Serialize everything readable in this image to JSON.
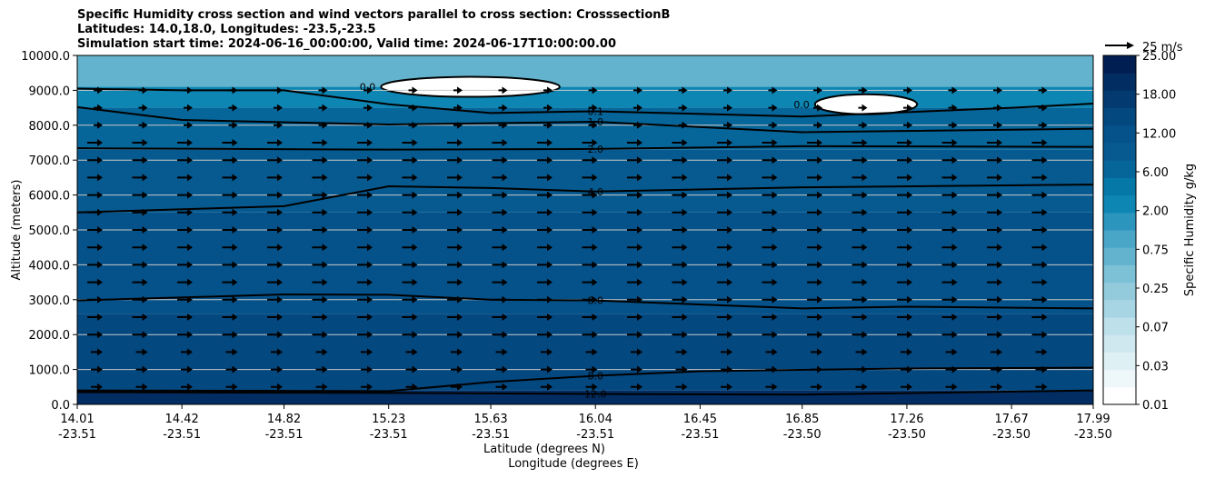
{
  "chart_data": {
    "type": "contour",
    "title_lines": [
      "Specific Humidity cross section and wind vectors parallel to cross section: CrosssectionB",
      "Latitudes: 14.0,18.0, Longitudes: -23.5,-23.5",
      "Simulation start time: 2024-06-16_00:00:00, Valid time: 2024-06-17T10:00:00.00"
    ],
    "ylabel": "Altitude (meters)",
    "xlabel_lat": "Latitude (degrees N)",
    "xlabel_lon": "Longitude (degrees E)",
    "ylim": [
      0,
      10000
    ],
    "y_ticks": [
      "0.0",
      "1000.0",
      "2000.0",
      "3000.0",
      "4000.0",
      "5000.0",
      "6000.0",
      "7000.0",
      "8000.0",
      "9000.0",
      "10000.0"
    ],
    "x_ticks": [
      {
        "lat": "14.01",
        "lon": "-23.51"
      },
      {
        "lat": "14.42",
        "lon": "-23.51"
      },
      {
        "lat": "14.82",
        "lon": "-23.51"
      },
      {
        "lat": "15.23",
        "lon": "-23.51"
      },
      {
        "lat": "15.63",
        "lon": "-23.51"
      },
      {
        "lat": "16.04",
        "lon": "-23.51"
      },
      {
        "lat": "16.45",
        "lon": "-23.51"
      },
      {
        "lat": "16.85",
        "lon": "-23.50"
      },
      {
        "lat": "17.26",
        "lon": "-23.50"
      },
      {
        "lat": "17.67",
        "lon": "-23.50"
      },
      {
        "lat": "17.99",
        "lon": "-23.50"
      }
    ],
    "colorbar": {
      "label": "Specific Humidity g/kg",
      "levels": [
        0.01,
        0.02,
        0.03,
        0.05,
        0.07,
        0.1,
        0.25,
        0.5,
        0.75,
        1.0,
        2.0,
        4.0,
        6.0,
        8.0,
        12.0,
        15.0,
        18.0,
        22.0,
        25.0
      ],
      "tick_labels": [
        "0.01",
        "0.03",
        "0.07",
        "0.25",
        "0.75",
        "2.00",
        "6.00",
        "12.00",
        "18.00",
        "25.00"
      ],
      "colors": [
        "#ffffff",
        "#eef7fa",
        "#dff0f5",
        "#cfe7ef",
        "#bde0ea",
        "#a8d5e3",
        "#93cbdc",
        "#7cc1d6",
        "#63b3ce",
        "#4aa6c7",
        "#2b95bd",
        "#0d86b3",
        "#0578a8",
        "#066599",
        "#065a90",
        "#05528a",
        "#044880",
        "#033b71",
        "#022d62",
        "#011e52"
      ]
    },
    "filled_bands": [
      {
        "y_from": 0,
        "y_to": 400,
        "value": 12.0,
        "color": "#022d62"
      },
      {
        "y_from": 400,
        "y_to": 2600,
        "value": 10.0,
        "color": "#044880"
      },
      {
        "y_from": 2600,
        "y_to": 5500,
        "value": 7.0,
        "color": "#05528a"
      },
      {
        "y_from": 5500,
        "y_to": 7300,
        "value": 4.5,
        "color": "#065a90"
      },
      {
        "y_from": 7300,
        "y_to": 8500,
        "value": 2.5,
        "color": "#066599"
      },
      {
        "y_from": 8500,
        "y_to": 9100,
        "value": 1.0,
        "color": "#0d86b3"
      },
      {
        "y_from": 9100,
        "y_to": 10000,
        "value": 0.5,
        "color": "#63b3ce"
      }
    ],
    "contour_lines": [
      {
        "level": "12.0",
        "points": [
          [
            14.01,
            350
          ],
          [
            15.23,
            330
          ],
          [
            16.04,
            300
          ],
          [
            16.85,
            280
          ],
          [
            17.99,
            400
          ]
        ]
      },
      {
        "level": "8.0",
        "points": [
          [
            14.01,
            400
          ],
          [
            15.23,
            380
          ],
          [
            15.63,
            640
          ],
          [
            16.04,
            820
          ],
          [
            16.45,
            950
          ],
          [
            17.26,
            1030
          ],
          [
            17.99,
            1050
          ]
        ]
      },
      {
        "level": "8.0",
        "points": [
          [
            14.01,
            2980
          ],
          [
            14.82,
            3150
          ],
          [
            15.23,
            3140
          ],
          [
            15.63,
            3000
          ],
          [
            16.04,
            2980
          ],
          [
            16.85,
            2750
          ],
          [
            17.26,
            2800
          ],
          [
            17.99,
            2750
          ]
        ]
      },
      {
        "level": "4.0",
        "points": [
          [
            14.01,
            5500
          ],
          [
            14.82,
            5680
          ],
          [
            15.23,
            6250
          ],
          [
            15.63,
            6200
          ],
          [
            16.04,
            6100
          ],
          [
            16.85,
            6220
          ],
          [
            17.99,
            6300
          ]
        ]
      },
      {
        "level": "2.0",
        "points": [
          [
            14.01,
            7340
          ],
          [
            15.23,
            7300
          ],
          [
            16.04,
            7320
          ],
          [
            16.85,
            7400
          ],
          [
            17.99,
            7380
          ]
        ]
      },
      {
        "level": "1.0",
        "points": [
          [
            14.01,
            8520
          ],
          [
            14.42,
            8150
          ],
          [
            15.23,
            8020
          ],
          [
            16.04,
            8100
          ],
          [
            16.85,
            7800
          ],
          [
            17.99,
            7900
          ]
        ]
      },
      {
        "level": "0.1",
        "points": [
          [
            14.01,
            9050
          ],
          [
            14.42,
            9000
          ],
          [
            14.82,
            9000
          ],
          [
            15.23,
            8600
          ],
          [
            15.63,
            8350
          ],
          [
            16.04,
            8400
          ],
          [
            16.85,
            8250
          ],
          [
            17.67,
            8500
          ],
          [
            17.99,
            8620
          ]
        ]
      }
    ],
    "dry_pockets": [
      {
        "label": "0.0",
        "x_from": 15.2,
        "x_to": 15.9,
        "y_mid": 9100
      },
      {
        "label": "0.0",
        "x_from": 16.9,
        "x_to": 17.3,
        "y_mid": 8600
      }
    ],
    "wind_reference": "25 m/s"
  }
}
